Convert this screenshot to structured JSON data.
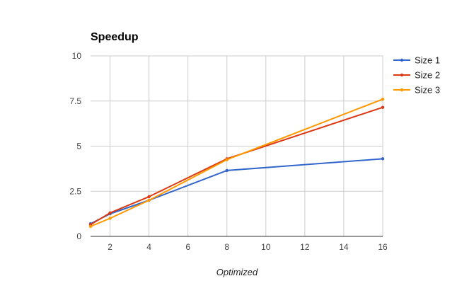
{
  "chart_data": {
    "type": "line",
    "title": "Speedup",
    "xlabel": "Optimized",
    "ylabel": "",
    "xlim": [
      1,
      16
    ],
    "ylim": [
      0,
      10
    ],
    "x_ticks": [
      2,
      4,
      6,
      8,
      10,
      12,
      14,
      16
    ],
    "x_tick_labels": [
      "2",
      "4",
      "6",
      "8",
      "10",
      "12",
      "14",
      "16"
    ],
    "y_ticks": [
      0,
      2.5,
      5,
      7.5,
      10
    ],
    "y_tick_labels": [
      "0",
      "2.5",
      "5",
      "7.5",
      "10"
    ],
    "grid": true,
    "legend_position": "right",
    "x": [
      1,
      2,
      4,
      8,
      16
    ],
    "series": [
      {
        "name": "Size 1",
        "color": "#3366cc",
        "values": [
          0.7,
          1.25,
          2.0,
          3.65,
          4.3
        ]
      },
      {
        "name": "Size 2",
        "color": "#dc3912",
        "values": [
          0.65,
          1.3,
          2.2,
          4.3,
          7.15
        ]
      },
      {
        "name": "Size 3",
        "color": "#ff9900",
        "values": [
          0.55,
          1.0,
          2.0,
          4.25,
          7.6
        ]
      }
    ]
  }
}
